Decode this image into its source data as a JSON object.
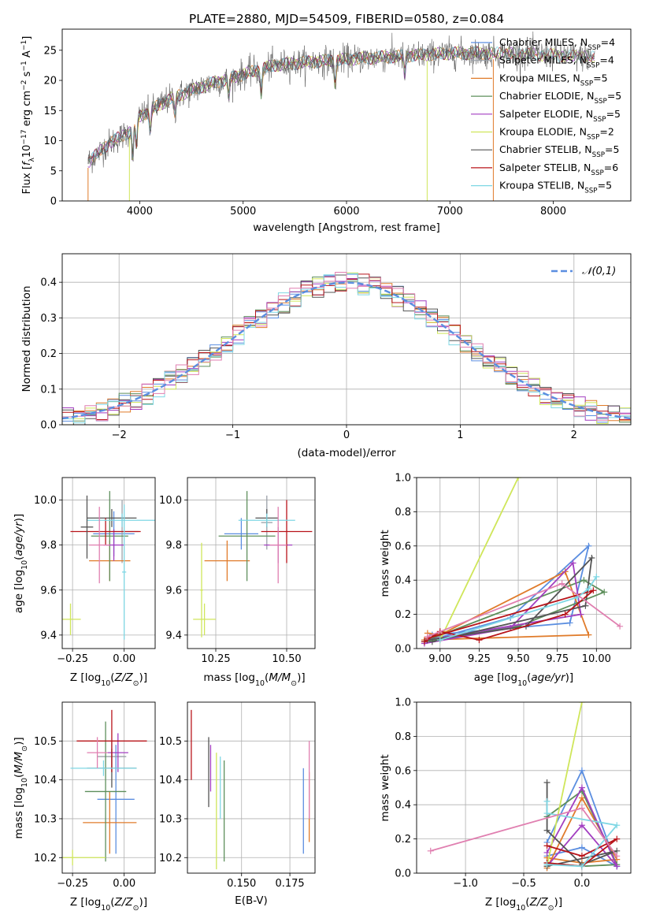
{
  "colors": {
    "c_ch_mi": "#5b8ee0",
    "c_sa_mi": "#9aa0a8",
    "c_kr_mi": "#e07b2a",
    "c_ch_el": "#5e8f5c",
    "c_sa_el": "#a23ec0",
    "c_kr_el": "#cfe65a",
    "c_ch_st": "#555555",
    "c_sa_st": "#b8141a",
    "c_kr_st": "#7fd7e4",
    "pink": "#e07fb0",
    "grid": "#b0b0b0"
  },
  "chart_data": [
    {
      "type": "line",
      "panel": "spectrum",
      "title": "PLATE=2880, MJD=54509, FIBERID=0580, z=0.084",
      "xlabel": "wavelength [Angstrom, rest frame]",
      "ylabel": "Flux [f_λ 10^-17 erg cm^-2 s^-1 A^-1]",
      "xlim": [
        3250,
        8750
      ],
      "ylim": [
        0,
        28.5
      ],
      "xticks": [
        "4000",
        "5000",
        "6000",
        "7000",
        "8000"
      ],
      "yticks": [
        "0",
        "5",
        "10",
        "15",
        "20",
        "25"
      ],
      "legend_position": "right",
      "legend": [
        {
          "base": "Chabrier MILES, N",
          "sub": "SSP",
          "tail": "=4",
          "color": "c_ch_mi"
        },
        {
          "base": "Salpeter MILES, N",
          "sub": "SSP",
          "tail": "=4",
          "color": "c_sa_mi"
        },
        {
          "base": "Kroupa MILES, N",
          "sub": "SSP",
          "tail": "=5",
          "color": "c_kr_mi"
        },
        {
          "base": "Chabrier ELODIE, N",
          "sub": "SSP",
          "tail": "=5",
          "color": "c_ch_el"
        },
        {
          "base": "Salpeter ELODIE, N",
          "sub": "SSP",
          "tail": "=5",
          "color": "c_sa_el"
        },
        {
          "base": "Kroupa ELODIE, N",
          "sub": "SSP",
          "tail": "=2",
          "color": "c_kr_el"
        },
        {
          "base": "Chabrier STELIB, N",
          "sub": "SSP",
          "tail": "=5",
          "color": "c_ch_st"
        },
        {
          "base": "Salpeter STELIB, N",
          "sub": "SSP",
          "tail": "=6",
          "color": "c_sa_st"
        },
        {
          "base": "Kroupa STELIB, N",
          "sub": "SSP",
          "tail": "=5",
          "color": "c_kr_st"
        }
      ],
      "continuum": [
        [
          3500,
          6.5
        ],
        [
          3700,
          9.5
        ],
        [
          3900,
          11.5
        ],
        [
          4000,
          14
        ],
        [
          4300,
          17
        ],
        [
          4600,
          19
        ],
        [
          5000,
          21
        ],
        [
          5300,
          22.5
        ],
        [
          5600,
          23
        ],
        [
          6000,
          23.5
        ],
        [
          6500,
          24
        ],
        [
          7000,
          24.5
        ],
        [
          7500,
          24.5
        ],
        [
          8000,
          24.2
        ],
        [
          8500,
          23.8
        ]
      ],
      "features": [
        {
          "x": 3933,
          "depth": 5
        },
        {
          "x": 3968,
          "depth": 4
        },
        {
          "x": 4101,
          "depth": 3
        },
        {
          "x": 4340,
          "depth": 3
        },
        {
          "x": 4861,
          "depth": 3
        },
        {
          "x": 5175,
          "depth": 4
        },
        {
          "x": 5890,
          "depth": 4
        },
        {
          "x": 6563,
          "depth": 3
        }
      ],
      "spikes": [
        {
          "x": 3500,
          "color": "c_kr_mi"
        },
        {
          "x": 3900,
          "color": "c_kr_el"
        },
        {
          "x": 6780,
          "color": "c_kr_el"
        },
        {
          "x": 7420,
          "color": "c_kr_mi"
        }
      ]
    },
    {
      "type": "histogram",
      "panel": "residuals",
      "xlabel": "(data-model)/error",
      "ylabel": "Normed distribution",
      "xlim": [
        -2.5,
        2.5
      ],
      "ylim": [
        0,
        0.48
      ],
      "xticks": [
        "−2",
        "−1",
        "0",
        "1",
        "2"
      ],
      "yticks": [
        "0.0",
        "0.1",
        "0.2",
        "0.3",
        "0.4"
      ],
      "bin_width": 0.1,
      "reference": {
        "label": "𝒩(0,1)",
        "mu": 0,
        "sigma": 1,
        "color": "c_ch_mi"
      },
      "legend_position": "top-right",
      "series_colors": [
        "c_ch_mi",
        "c_kr_mi",
        "c_ch_el",
        "c_sa_el",
        "c_kr_el",
        "c_ch_st",
        "c_sa_st",
        "c_kr_st",
        "pink"
      ]
    },
    {
      "type": "errorbar",
      "panel": "age_vs_Z",
      "xlabel": "Z [log10(Z/Z☉)]",
      "ylabel": "age [log10(age/yr)]",
      "xlim": [
        -0.3,
        0.15
      ],
      "ylim": [
        9.34,
        10.1
      ],
      "xticks": [
        "−0.25",
        "0.00"
      ],
      "yticks": [
        "9.4",
        "9.6",
        "9.8",
        "10.0"
      ],
      "points": [
        {
          "x": -0.05,
          "xe": 0.1,
          "y": 9.85,
          "ye": 0.1,
          "color": "c_ch_mi"
        },
        {
          "x": -0.01,
          "xe": 0.08,
          "y": 9.86,
          "ye": 0.14,
          "color": "c_sa_mi"
        },
        {
          "x": -0.07,
          "xe": 0.1,
          "y": 9.73,
          "ye": 0.09,
          "color": "c_kr_mi"
        },
        {
          "x": -0.07,
          "xe": 0.09,
          "y": 9.84,
          "ye": 0.2,
          "color": "c_ch_el"
        },
        {
          "x": -0.05,
          "xe": 0.05,
          "y": 9.8,
          "ye": 0.07,
          "color": "c_sa_el"
        },
        {
          "x": -0.26,
          "xe": 0.05,
          "y": 9.47,
          "ye": 0.07,
          "color": "c_kr_el"
        },
        {
          "x": -0.06,
          "xe": 0.12,
          "y": 9.92,
          "ye": 0.04,
          "color": "c_ch_st"
        },
        {
          "x": -0.09,
          "xe": 0.17,
          "y": 9.86,
          "ye": 0.06,
          "color": "c_sa_st"
        },
        {
          "x": -0.01,
          "xe": 0.17,
          "y": 9.91,
          "ye": 0.03,
          "color": "c_kr_st"
        },
        {
          "x": -0.12,
          "xe": 0.05,
          "y": 9.8,
          "ye": 0.17,
          "color": "pink"
        },
        {
          "x": -0.18,
          "xe": 0.03,
          "y": 9.88,
          "ye": 0.14,
          "color": "c_ch_st"
        },
        {
          "x": 0.0,
          "xe": 0.01,
          "y": 9.68,
          "ye": 0.3,
          "color": "c_kr_st"
        }
      ]
    },
    {
      "type": "errorbar",
      "panel": "age_vs_mass",
      "xlabel": "mass [log10(M/M☉)]",
      "ylabel": "",
      "xlim": [
        10.15,
        10.6
      ],
      "ylim": [
        9.34,
        10.1
      ],
      "xticks": [
        "10.25",
        "10.50"
      ],
      "yticks": [
        "9.4",
        "9.6",
        "9.8",
        "10.0"
      ],
      "points": [
        {
          "x": 10.34,
          "xe": 0.06,
          "y": 9.85,
          "ye": 0.07,
          "color": "c_ch_mi"
        },
        {
          "x": 10.43,
          "xe": 0.02,
          "y": 9.9,
          "ye": 0.12,
          "color": "c_sa_mi"
        },
        {
          "x": 10.29,
          "xe": 0.08,
          "y": 9.73,
          "ye": 0.09,
          "color": "c_kr_mi"
        },
        {
          "x": 10.36,
          "xe": 0.1,
          "y": 9.84,
          "ye": 0.2,
          "color": "c_ch_el"
        },
        {
          "x": 10.47,
          "xe": 0.05,
          "y": 9.8,
          "ye": 0.08,
          "color": "c_sa_el"
        },
        {
          "x": 10.21,
          "xe": 0.04,
          "y": 9.47,
          "ye": 0.07,
          "color": "c_kr_el"
        },
        {
          "x": 10.43,
          "xe": 0.04,
          "y": 9.92,
          "ye": 0.04,
          "color": "c_ch_st"
        },
        {
          "x": 10.5,
          "xe": 0.09,
          "y": 9.86,
          "ye": 0.14,
          "color": "c_sa_st"
        },
        {
          "x": 10.43,
          "xe": 0.1,
          "y": 9.91,
          "ye": 0.03,
          "color": "c_kr_st"
        },
        {
          "x": 10.47,
          "xe": 0.03,
          "y": 9.8,
          "ye": 0.17,
          "color": "pink"
        },
        {
          "x": 10.2,
          "xe": 0.005,
          "y": 9.6,
          "ye": 0.21,
          "color": "c_kr_el"
        }
      ]
    },
    {
      "type": "line",
      "panel": "weight_vs_age",
      "xlabel": "age [log10(age/yr)]",
      "ylabel": "mass weight",
      "xlim": [
        8.85,
        10.22
      ],
      "ylim": [
        0,
        1.0
      ],
      "xticks": [
        "9.00",
        "9.25",
        "9.50",
        "9.75",
        "10.00"
      ],
      "yticks": [
        "0.0",
        "0.2",
        "0.4",
        "0.6",
        "0.8",
        "1.0"
      ],
      "series": [
        {
          "color": "c_ch_mi",
          "points": [
            [
              8.9,
              0.04
            ],
            [
              9.45,
              0.18
            ],
            [
              9.95,
              0.6
            ],
            [
              9.83,
              0.15
            ],
            [
              8.95,
              0.08
            ]
          ]
        },
        {
          "color": "c_kr_mi",
          "points": [
            [
              8.92,
              0.09
            ],
            [
              9.0,
              0.08
            ],
            [
              9.8,
              0.45
            ],
            [
              9.95,
              0.08
            ],
            [
              8.9,
              0.05
            ]
          ]
        },
        {
          "color": "c_ch_el",
          "points": [
            [
              8.9,
              0.04
            ],
            [
              9.5,
              0.13
            ],
            [
              10.05,
              0.33
            ],
            [
              9.92,
              0.4
            ],
            [
              8.95,
              0.06
            ]
          ]
        },
        {
          "color": "c_sa_el",
          "points": [
            [
              8.9,
              0.03
            ],
            [
              9.45,
              0.12
            ],
            [
              9.85,
              0.5
            ],
            [
              9.9,
              0.2
            ],
            [
              8.92,
              0.05
            ]
          ]
        },
        {
          "color": "c_kr_el",
          "points": [
            [
              9.0,
              0.05
            ],
            [
              9.5,
              1.0
            ]
          ]
        },
        {
          "color": "c_ch_st",
          "points": [
            [
              8.92,
              0.05
            ],
            [
              9.55,
              0.13
            ],
            [
              9.97,
              0.53
            ],
            [
              9.93,
              0.25
            ],
            [
              8.95,
              0.04
            ]
          ]
        },
        {
          "color": "c_sa_st",
          "points": [
            [
              8.9,
              0.04
            ],
            [
              9.0,
              0.1
            ],
            [
              9.25,
              0.05
            ],
            [
              9.8,
              0.2
            ],
            [
              9.98,
              0.34
            ],
            [
              8.92,
              0.06
            ]
          ]
        },
        {
          "color": "c_kr_st",
          "points": [
            [
              9.0,
              0.05
            ],
            [
              9.88,
              0.3
            ],
            [
              9.95,
              0.35
            ],
            [
              10.0,
              0.42
            ]
          ]
        },
        {
          "color": "pink",
          "points": [
            [
              8.92,
              0.07
            ],
            [
              9.78,
              0.38
            ],
            [
              10.15,
              0.13
            ]
          ]
        }
      ]
    },
    {
      "type": "errorbar",
      "panel": "mass_vs_Z",
      "xlabel": "Z [log10(Z/Z☉)]",
      "ylabel": "mass [log10(M/M☉)]",
      "xlim": [
        -0.3,
        0.15
      ],
      "ylim": [
        10.16,
        10.6
      ],
      "xticks": [
        "−0.25",
        "0.00"
      ],
      "yticks": [
        "10.2",
        "10.3",
        "10.4",
        "10.5"
      ],
      "points": [
        {
          "x": -0.04,
          "xe": 0.09,
          "y": 10.35,
          "ye": 0.14,
          "color": "c_ch_mi"
        },
        {
          "x": -0.06,
          "xe": 0.07,
          "y": 10.46,
          "ye": 0.04,
          "color": "c_sa_mi"
        },
        {
          "x": -0.07,
          "xe": 0.13,
          "y": 10.29,
          "ye": 0.08,
          "color": "c_kr_mi"
        },
        {
          "x": -0.09,
          "xe": 0.1,
          "y": 10.37,
          "ye": 0.18,
          "color": "c_ch_el"
        },
        {
          "x": -0.03,
          "xe": 0.05,
          "y": 10.47,
          "ye": 0.05,
          "color": "c_sa_el"
        },
        {
          "x": -0.25,
          "xe": 0.16,
          "y": 10.2,
          "ye": 0.02,
          "color": "c_kr_el"
        },
        {
          "x": -0.06,
          "xe": 0.12,
          "y": 10.43,
          "ye": 0.05,
          "color": "c_ch_st"
        },
        {
          "x": -0.06,
          "xe": 0.17,
          "y": 10.5,
          "ye": 0.08,
          "color": "c_sa_st"
        },
        {
          "x": -0.1,
          "xe": 0.16,
          "y": 10.43,
          "ye": 0.02,
          "color": "c_kr_st"
        },
        {
          "x": -0.13,
          "xe": 0.05,
          "y": 10.47,
          "ye": 0.04,
          "color": "pink"
        }
      ]
    },
    {
      "type": "errorbar",
      "panel": "mass_vs_EBV",
      "xlabel": "E(B-V)",
      "ylabel": "",
      "xlim": [
        0.122,
        0.188
      ],
      "ylim": [
        10.16,
        10.6
      ],
      "xticks": [
        "0.150",
        "0.175"
      ],
      "yticks": [
        "10.2",
        "10.3",
        "10.4",
        "10.5"
      ],
      "points": [
        {
          "x": 0.124,
          "xe": 0,
          "y": 10.49,
          "ye": 0.09,
          "color": "c_sa_st"
        },
        {
          "x": 0.133,
          "xe": 0,
          "y": 10.42,
          "ye": 0.09,
          "color": "c_ch_st"
        },
        {
          "x": 0.134,
          "xe": 0,
          "y": 10.43,
          "ye": 0.06,
          "color": "c_sa_el"
        },
        {
          "x": 0.137,
          "xe": 0,
          "y": 10.32,
          "ye": 0.15,
          "color": "c_kr_el"
        },
        {
          "x": 0.139,
          "xe": 0,
          "y": 10.38,
          "ye": 0.08,
          "color": "c_kr_st"
        },
        {
          "x": 0.141,
          "xe": 0,
          "y": 10.32,
          "ye": 0.13,
          "color": "c_ch_el"
        },
        {
          "x": 0.182,
          "xe": 0,
          "y": 10.32,
          "ye": 0.11,
          "color": "c_ch_mi"
        },
        {
          "x": 0.185,
          "xe": 0,
          "y": 10.33,
          "ye": 0.09,
          "color": "c_kr_mi"
        },
        {
          "x": 0.185,
          "xe": 0,
          "y": 10.4,
          "ye": 0.1,
          "color": "pink"
        }
      ]
    },
    {
      "type": "line",
      "panel": "weight_vs_Z",
      "xlabel": "Z [log10(Z/Z☉)]",
      "ylabel": "mass weight",
      "xlim": [
        -1.42,
        0.42
      ],
      "ylim": [
        0,
        1.0
      ],
      "xticks": [
        "−1.0",
        "−0.5",
        "0.0"
      ],
      "yticks": [
        "0.0",
        "0.2",
        "0.4",
        "0.6",
        "0.8",
        "1.0"
      ],
      "series": [
        {
          "color": "c_ch_mi",
          "points": [
            [
              -0.3,
              0.18
            ],
            [
              0.0,
              0.6
            ],
            [
              0.3,
              0.04
            ],
            [
              0.0,
              0.15
            ],
            [
              -0.3,
              0.1
            ]
          ]
        },
        {
          "color": "c_kr_mi",
          "points": [
            [
              -0.3,
              0.03
            ],
            [
              0.0,
              0.44
            ],
            [
              0.3,
              0.08
            ],
            [
              0.0,
              0.06
            ],
            [
              -0.3,
              0.09
            ]
          ]
        },
        {
          "color": "c_ch_el",
          "points": [
            [
              -0.3,
              0.33
            ],
            [
              0.0,
              0.48
            ],
            [
              0.3,
              0.05
            ],
            [
              0.0,
              0.04
            ],
            [
              -0.3,
              0.06
            ]
          ]
        },
        {
          "color": "c_sa_el",
          "points": [
            [
              -0.3,
              0.12
            ],
            [
              0.0,
              0.5
            ],
            [
              0.3,
              0.04
            ],
            [
              0.0,
              0.28
            ],
            [
              -0.3,
              0.04
            ]
          ]
        },
        {
          "color": "c_kr_el",
          "points": [
            [
              -0.3,
              0.04
            ],
            [
              0.0,
              1.0
            ]
          ]
        },
        {
          "color": "c_ch_st",
          "points": [
            [
              -0.3,
              0.53
            ],
            [
              -0.3,
              0.25
            ],
            [
              0.0,
              0.05
            ],
            [
              0.3,
              0.13
            ],
            [
              -0.3,
              0.04
            ]
          ]
        },
        {
          "color": "c_sa_st",
          "points": [
            [
              -0.3,
              0.16
            ],
            [
              0.0,
              0.1
            ],
            [
              0.3,
              0.2
            ],
            [
              0.0,
              0.04
            ],
            [
              -0.3,
              0.06
            ]
          ]
        },
        {
          "color": "c_kr_st",
          "points": [
            [
              -0.3,
              0.42
            ],
            [
              -0.3,
              0.35
            ],
            [
              0.3,
              0.28
            ],
            [
              0.0,
              0.04
            ],
            [
              -0.3,
              0.05
            ]
          ]
        },
        {
          "color": "pink",
          "points": [
            [
              -1.3,
              0.13
            ],
            [
              0.0,
              0.38
            ],
            [
              0.3,
              0.1
            ]
          ]
        }
      ]
    }
  ]
}
